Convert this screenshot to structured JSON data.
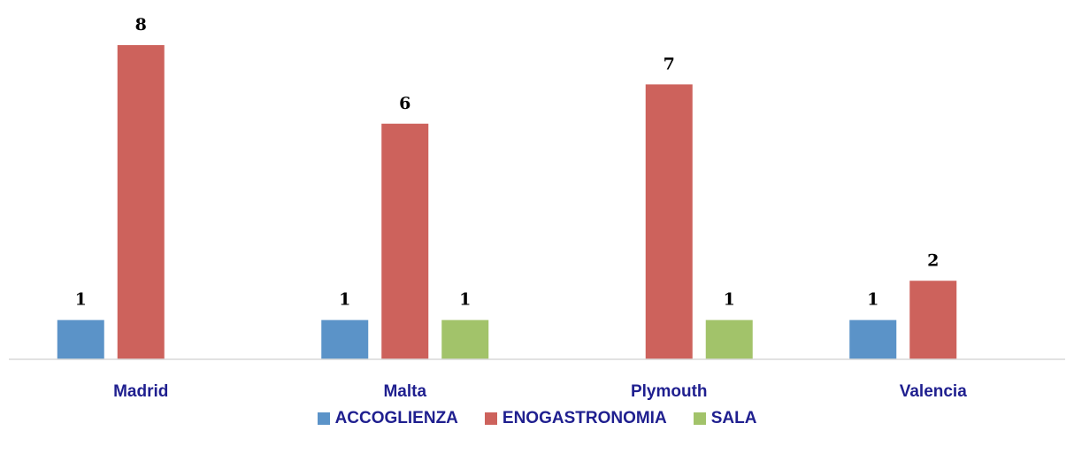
{
  "chart_data": {
    "type": "bar",
    "categories": [
      "Madrid",
      "Malta",
      "Plymouth",
      "Valencia"
    ],
    "series": [
      {
        "name": "ACCOGLIENZA",
        "color": "#5b93c8",
        "values": [
          1,
          1,
          null,
          1
        ]
      },
      {
        "name": "ENOGASTRONOMIA",
        "color": "#cd625c",
        "values": [
          8,
          6,
          7,
          2
        ]
      },
      {
        "name": "SALA",
        "color": "#a2c36a",
        "values": [
          null,
          1,
          1,
          null
        ]
      }
    ],
    "title": "",
    "xlabel": "",
    "ylabel": "",
    "ylim": [
      0,
      8
    ],
    "grid": false,
    "legend_position": "bottom",
    "data_labels": true
  }
}
